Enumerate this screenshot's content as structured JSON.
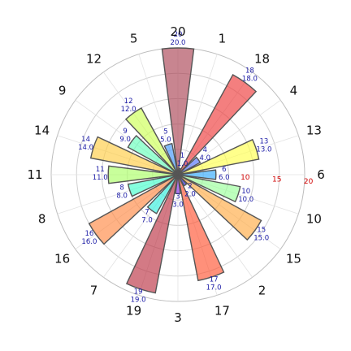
{
  "chart_data": {
    "type": "polar_bar",
    "categories": [
      "1",
      "18",
      "4",
      "13",
      "6",
      "10",
      "15",
      "2",
      "17",
      "3",
      "19",
      "7",
      "16",
      "8",
      "11",
      "14",
      "9",
      "12",
      "5",
      "20"
    ],
    "values": [
      1,
      18,
      4,
      13,
      6,
      10,
      15,
      2,
      17,
      3,
      19,
      7,
      16,
      8,
      11,
      14,
      9,
      12,
      5,
      20
    ],
    "value_labels": [
      "1\n1.0",
      "18\n18.0",
      "4\n4.0",
      "13\n13.0",
      "6\n6.0",
      "10\n10.0",
      "15\n15.0",
      "2\n2.0",
      "17\n17.0",
      "3\n3.0",
      "19\n19.0",
      "7\n7.0",
      "16\n16.0",
      "8\n8.0",
      "11\n11.0",
      "14\n14.0",
      "9\n9.0",
      "12\n12.0",
      "5\n5.0",
      "20\n20.0"
    ],
    "radial_ticks": [
      "10",
      "15",
      "20"
    ],
    "rlim": [
      0,
      20
    ],
    "grid": true,
    "colors": {
      "tick_label": "#d00000",
      "value_label": "#1a1aa6",
      "bar_edge": "#555555"
    },
    "bar_colors": [
      "#6b6bff",
      "#ee3b3b",
      "#5577ff",
      "#ffff4d",
      "#33aaff",
      "#99ff99",
      "#ffaa44",
      "#2222ee",
      "#ff5533",
      "#8833ee",
      "#bb3344",
      "#33eedd",
      "#ff8844",
      "#44ffcc",
      "#aaff66",
      "#ffcc44",
      "#66ffbb",
      "#ccff55",
      "#4499ff",
      "#aa4455"
    ]
  }
}
